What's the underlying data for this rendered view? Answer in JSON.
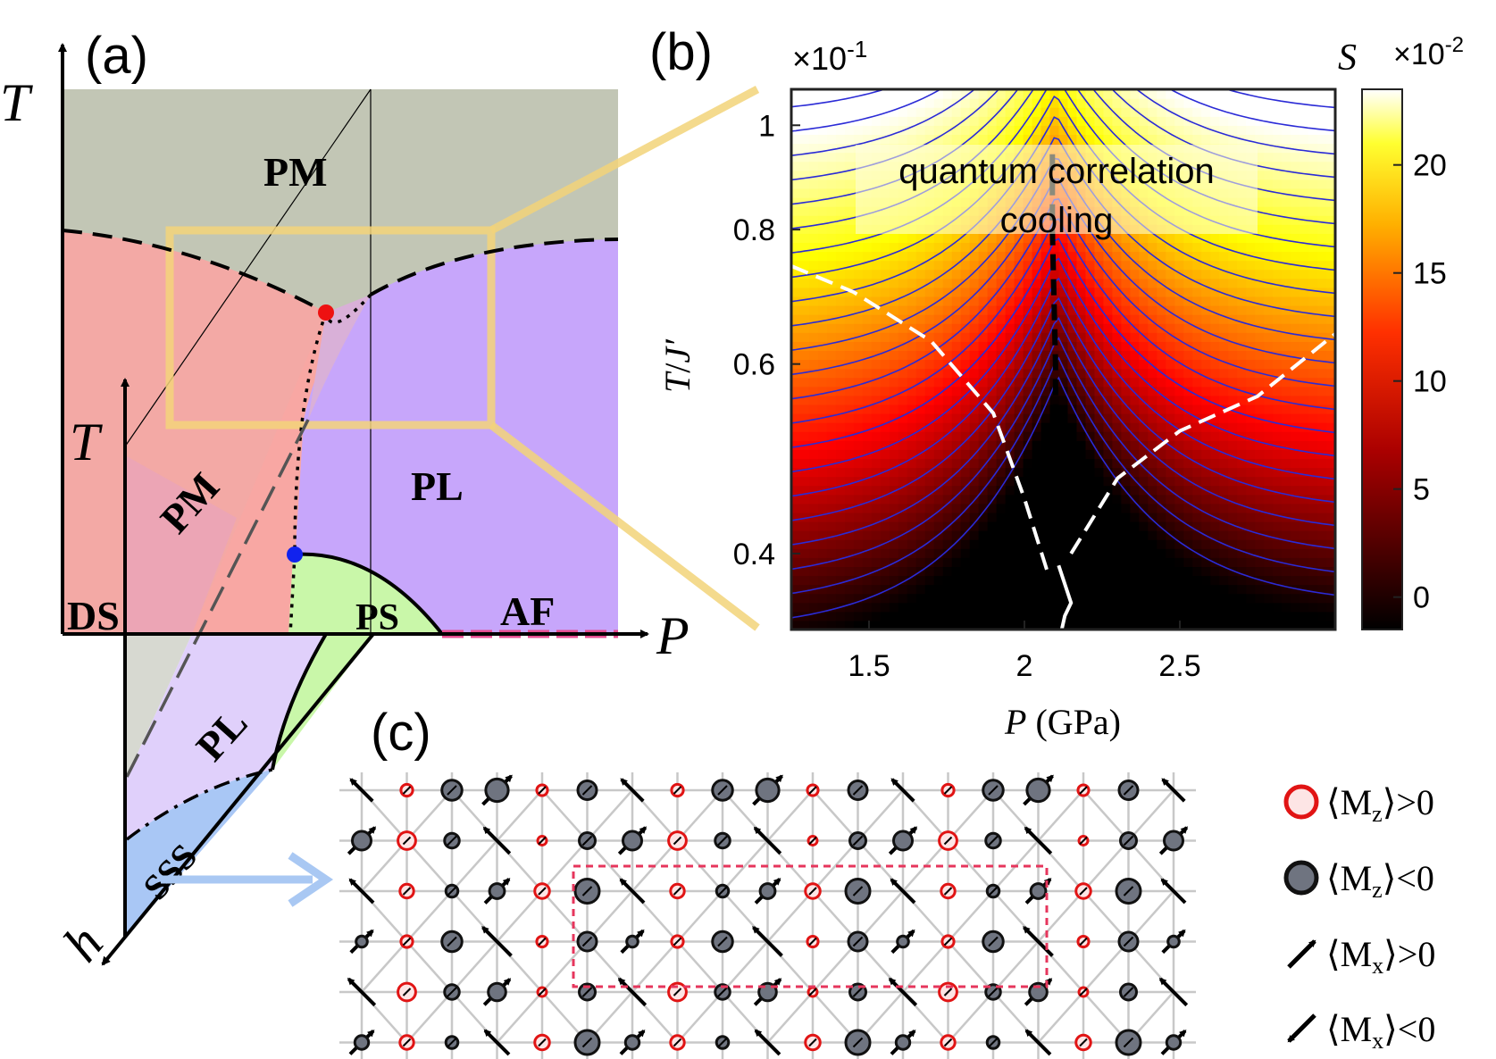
{
  "panel_labels": {
    "a": "(a)",
    "b": "(b)",
    "c": "(c)"
  },
  "panel_a": {
    "axis_T_top": "T",
    "axis_T_inner": "T",
    "axis_P": "P",
    "axis_h": "h",
    "regions": {
      "pm_top": "PM",
      "pm_rot": "PM",
      "pl_main": "PL",
      "pl_low": "PL",
      "ds": "DS",
      "ps": "PS",
      "af": "AF",
      "sss": "SSS"
    },
    "colors": {
      "pm_gray": "#c2c6b5",
      "pm_red": "#f8a7a3",
      "pl_purple": "#c7a6fb",
      "ps_green": "#c9f7a9",
      "sss_blue": "#a9c7f5",
      "pl_light": "#e0d0fb",
      "af_line": "#e64d8f",
      "box": "#f3d47a",
      "crit_red": "#ee1111",
      "crit_blue": "#1122ee"
    }
  },
  "chart_data": {
    "type": "heatmap",
    "title": "",
    "xlabel": "P (GPa)",
    "ylabel": "T/J'",
    "x_ticks": [
      "1.5",
      "2",
      "2.5"
    ],
    "y_ticks": [
      "0.4",
      "0.6",
      "0.8",
      "1"
    ],
    "y_multiplier": "×10",
    "y_multiplier_exp": "-1",
    "xlim": [
      1.25,
      3.0
    ],
    "ylim": [
      0.34,
      1.08
    ],
    "yscale": "log",
    "colorbar": {
      "label": "S",
      "multiplier": "×10",
      "multiplier_exp": "-2",
      "ticks": [
        "0",
        "5",
        "10",
        "15",
        "20"
      ],
      "range": [
        -1.5,
        23.5
      ],
      "colormap": "hot"
    },
    "annotation_line1": "quantum correlation",
    "annotation_line2": "cooling",
    "series": [
      {
        "style": "black-dashed",
        "x": [
          2.09,
          2.09,
          2.1,
          2.1,
          2.1,
          2.1
        ],
        "y": [
          0.94,
          0.8,
          0.6,
          0.5,
          0.4,
          0.35
        ]
      },
      {
        "style": "white-dashed-left",
        "x": [
          1.25,
          1.45,
          1.7,
          1.9,
          2.0,
          2.08
        ],
        "y": [
          0.74,
          0.7,
          0.63,
          0.54,
          0.45,
          0.38
        ]
      },
      {
        "style": "white-dashed-right",
        "x": [
          2.15,
          2.3,
          2.5,
          2.75,
          3.0
        ],
        "y": [
          0.4,
          0.47,
          0.52,
          0.56,
          0.64
        ]
      },
      {
        "style": "white-solid",
        "x": [
          2.11,
          2.15,
          2.13,
          2.12
        ],
        "y": [
          0.39,
          0.36,
          0.35,
          0.34
        ]
      }
    ]
  },
  "panel_c": {
    "legend": {
      "mz_pos": "⟨M",
      "mz_pos_sub": "z",
      "mz_pos_rel": "⟩>0",
      "mz_neg": "⟨M",
      "mz_neg_sub": "z",
      "mz_neg_rel": "⟩<0",
      "mx_pos": "⟨M",
      "mx_pos_sub": "x",
      "mx_pos_rel": "⟩>0",
      "mx_neg": "⟨M",
      "mx_neg_sub": "x",
      "mx_neg_rel": "⟩<0"
    },
    "colors": {
      "pos": "#fde5e5",
      "pos_edge": "#e11414",
      "neg": "#6f7480",
      "neg_edge": "#111111",
      "box": "#e6365c",
      "arrow_blue": "#a9c8f3"
    }
  }
}
